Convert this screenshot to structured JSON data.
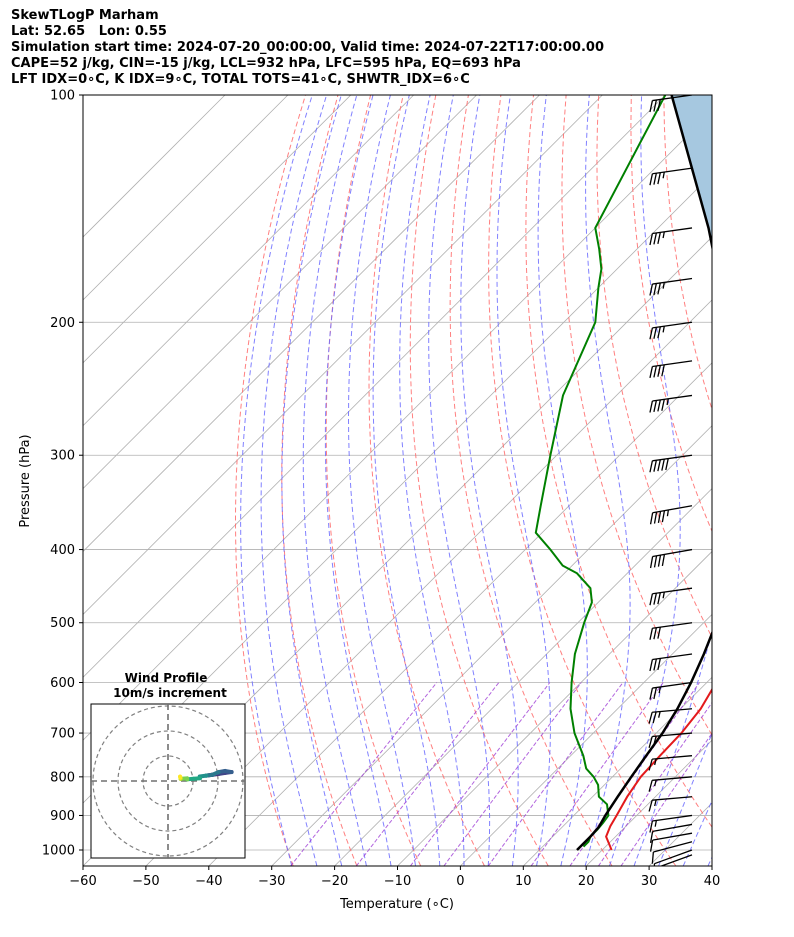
{
  "header": {
    "line1": "SkewTLogP Marham",
    "line2": "Lat: 52.65   Lon: 0.55",
    "line3": "Simulation start time: 2024-07-20_00:00:00, Valid time: 2024-07-22T17:00:00.00",
    "line4": "CAPE=52 j/kg, CIN=-15 j/kg, LCL=932 hPa, LFC=595 hPa, EQ=693 hPa",
    "line5": "LFT IDX=0∘C, K IDX=9∘C, TOTAL TOTS=41∘C, SHWTR_IDX=6∘C"
  },
  "chart_data": {
    "type": "line",
    "subtype": "skew-T log-P diagram",
    "xlabel": "Temperature (∘C)",
    "ylabel": "Pressure (hPa)",
    "xlim": [
      -60,
      40
    ],
    "ylim": [
      1050,
      100
    ],
    "y_scale": "log",
    "x_ticks": [
      -60,
      -50,
      -40,
      -30,
      -20,
      -10,
      0,
      10,
      20,
      30,
      40
    ],
    "x_tick_labels": [
      "−60",
      "−50",
      "−40",
      "−30",
      "−20",
      "−10",
      "0",
      "10",
      "20",
      "30",
      "40"
    ],
    "y_ticks": [
      1000,
      900,
      800,
      700,
      600,
      500,
      400,
      300,
      200,
      100
    ],
    "y_tick_labels": [
      "1000",
      "900",
      "800",
      "700",
      "600",
      "500",
      "400",
      "300",
      "200",
      "100"
    ],
    "grid": true,
    "colors": {
      "temperature": "#e31a1c",
      "dewpoint": "#008000",
      "parcel": "#000000",
      "cape_fill": "#a6c8e0",
      "dry_adiabat": "#ff6a6a",
      "moist_adiabat": "#6b6bff",
      "mixing_ratio": "#9f3fd6",
      "isotherm_grid": "#b0b0b0",
      "barb": "#000000"
    },
    "series": [
      {
        "pressure": [
          1000,
          960,
          930,
          900,
          850,
          800,
          750,
          700,
          650,
          600,
          550,
          500,
          450,
          400,
          350,
          300,
          275,
          250,
          230,
          210,
          200,
          180,
          165,
          150,
          135,
          120,
          110,
          100
        ],
        "values": [
          21.5,
          18.5,
          17.5,
          16.8,
          15.5,
          14.5,
          14.2,
          14.0,
          13.2,
          11.5,
          9.3,
          5.5,
          1.5,
          -3.5,
          -9.5,
          -17.5,
          -21.5,
          -26.5,
          -30.5,
          -34.5,
          -36.5,
          -40.0,
          -44.0,
          -47.5,
          -52.0,
          -58.0,
          -63.0,
          -68.0
        ]
      },
      {
        "pressure": [
          990,
          975,
          960,
          940,
          920,
          900,
          870,
          850,
          820,
          800,
          780,
          750,
          700,
          650,
          600,
          550,
          500,
          470,
          450,
          430,
          420,
          400,
          380,
          350,
          300,
          250,
          200,
          180,
          170,
          160,
          150,
          100
        ],
        "values": [
          16.5,
          16.5,
          16.0,
          16.0,
          15.8,
          15.5,
          13.5,
          11.0,
          9.0,
          7.0,
          4.5,
          2.0,
          -3.0,
          -7.5,
          -11.5,
          -15.5,
          -19.0,
          -21.0,
          -23.5,
          -28.0,
          -31.5,
          -36.0,
          -41.0,
          -44.5,
          -51.0,
          -58.5,
          -65.0,
          -70.0,
          -72.5,
          -76.0,
          -80.0,
          -90.0
        ]
      },
      {
        "pressure": [
          1000,
          960,
          932,
          900,
          850,
          800,
          750,
          700,
          650,
          600,
          550,
          500,
          450,
          400,
          350,
          300,
          250,
          200,
          150,
          100
        ],
        "values": [
          16.0,
          16.0,
          15.8,
          15.0,
          14.0,
          13.0,
          12.0,
          11.0,
          9.5,
          7.5,
          5.0,
          2.0,
          -2.0,
          -7.0,
          -13.0,
          -21.0,
          -31.0,
          -44.0,
          -62.0,
          -89.0
        ]
      }
    ],
    "wind_barbs": {
      "pressure": [
        1015,
        1000,
        975,
        950,
        925,
        900,
        850,
        800,
        750,
        700,
        650,
        600,
        550,
        500,
        450,
        400,
        350,
        300,
        250,
        225,
        200,
        175,
        150,
        125,
        100
      ],
      "speed_kt": [
        10,
        10,
        10,
        10,
        10,
        15,
        15,
        15,
        15,
        20,
        25,
        25,
        30,
        30,
        35,
        40,
        45,
        50,
        45,
        40,
        35,
        35,
        35,
        35,
        30
      ],
      "direction_deg": [
        250,
        250,
        255,
        260,
        260,
        262,
        265,
        265,
        265,
        265,
        265,
        262,
        262,
        262,
        262,
        260,
        260,
        262,
        262,
        262,
        262,
        262,
        262,
        262,
        262
      ]
    },
    "hodograph": {
      "title": "Wind Profile",
      "subtitle": "10m/s increment",
      "rings": [
        10,
        20,
        30
      ]
    }
  }
}
